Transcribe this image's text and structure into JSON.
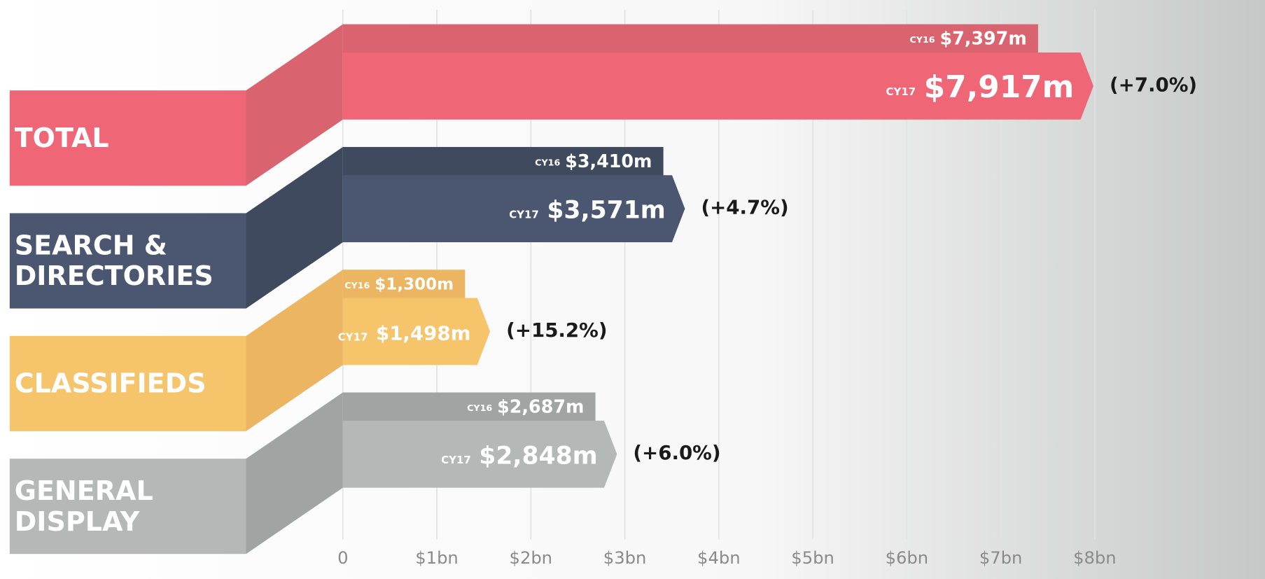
{
  "chart_data": {
    "type": "bar",
    "orientation": "horizontal",
    "categories": [
      "TOTAL",
      "SEARCH & DIRECTORIES",
      "CLASSIFIEDS",
      "GENERAL DISPLAY"
    ],
    "series": [
      {
        "name": "CY16",
        "colors": [
          "#d9636f",
          "#3f4a5e",
          "#ebb561",
          "#a0a4a3"
        ],
        "values": [
          7.397,
          3.41,
          1.3,
          2.687
        ],
        "value_labels": [
          "$7,397m",
          "$3,410m",
          "$1,300m",
          "$2,687m"
        ]
      },
      {
        "name": "CY17",
        "colors": [
          "#ef6676",
          "#4b5670",
          "#f5c46b",
          "#b4b8b7"
        ],
        "values": [
          7.917,
          3.571,
          1.498,
          2.848
        ],
        "value_labels": [
          "$7,917m",
          "$3,571m",
          "$1,498m",
          "$2,848m"
        ]
      }
    ],
    "annotations": [
      "(+7.0%)",
      "(+4.7%)",
      "(+15.2%)",
      "(+6.0%)"
    ],
    "xlim": [
      0,
      8
    ],
    "xticks": [
      0,
      {
        "value": 1,
        "label": "$1bn"
      },
      {
        "value": 2,
        "label": "$2bn"
      },
      {
        "value": 3,
        "label": "$3bn"
      },
      {
        "value": 4,
        "label": "$4bn"
      },
      {
        "value": 5,
        "label": "$5bn"
      },
      {
        "value": 6,
        "label": "$6bn"
      },
      {
        "value": 7,
        "label": "$7bn"
      },
      {
        "value": 8,
        "label": "$8bn"
      }
    ],
    "grid": true
  }
}
